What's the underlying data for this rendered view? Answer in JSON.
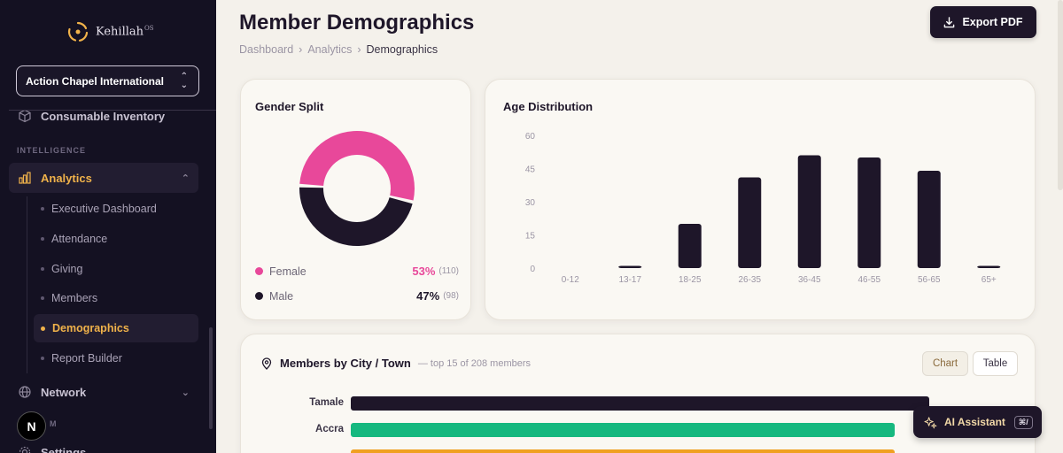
{
  "brand": {
    "name": "Kehillah",
    "sup": "OS"
  },
  "org_select": {
    "value": "Action Chapel International"
  },
  "sidebar": {
    "consumable": "Consumable Inventory",
    "section_intelligence": "INTELLIGENCE",
    "analytics": "Analytics",
    "sub_items": [
      "Executive Dashboard",
      "Attendance",
      "Giving",
      "Members",
      "Demographics",
      "Report Builder"
    ],
    "network": "Network",
    "settings": "Settings",
    "faded_section": "M",
    "n_badge": "N"
  },
  "header": {
    "title": "Member Demographics",
    "breadcrumb": [
      "Dashboard",
      "Analytics",
      "Demographics"
    ],
    "export_label": "Export PDF"
  },
  "gender": {
    "title": "Gender Split",
    "female": {
      "label": "Female",
      "pct": "53%",
      "count": "(110)",
      "color": "#e8489a"
    },
    "male": {
      "label": "Male",
      "pct": "47%",
      "count": "(98)",
      "color": "#1e1629"
    }
  },
  "age": {
    "title": "Age Distribution"
  },
  "chart_data": {
    "type": "bar",
    "title": "Age Distribution",
    "categories": [
      "0-12",
      "13-17",
      "18-25",
      "26-35",
      "36-45",
      "46-55",
      "56-65",
      "65+"
    ],
    "values": [
      0,
      1,
      20,
      41,
      51,
      50,
      44,
      1
    ],
    "yticks": [
      0,
      15,
      30,
      45,
      60
    ],
    "ylim": [
      0,
      60
    ],
    "grid": false,
    "color": "#1e1629"
  },
  "city": {
    "title": "Members by City / Town",
    "subtitle": "— top 15 of 208 members",
    "toggle_chart": "Chart",
    "toggle_table": "Table",
    "items": [
      {
        "name": "Tamale",
        "value": 100,
        "color": "#1e1629"
      },
      {
        "name": "Accra",
        "value": 94,
        "color": "#16b87f"
      },
      {
        "name": "",
        "value": 94,
        "color": "#f0a020"
      }
    ]
  },
  "ai": {
    "label": "AI Assistant",
    "kbd": "⌘/"
  }
}
